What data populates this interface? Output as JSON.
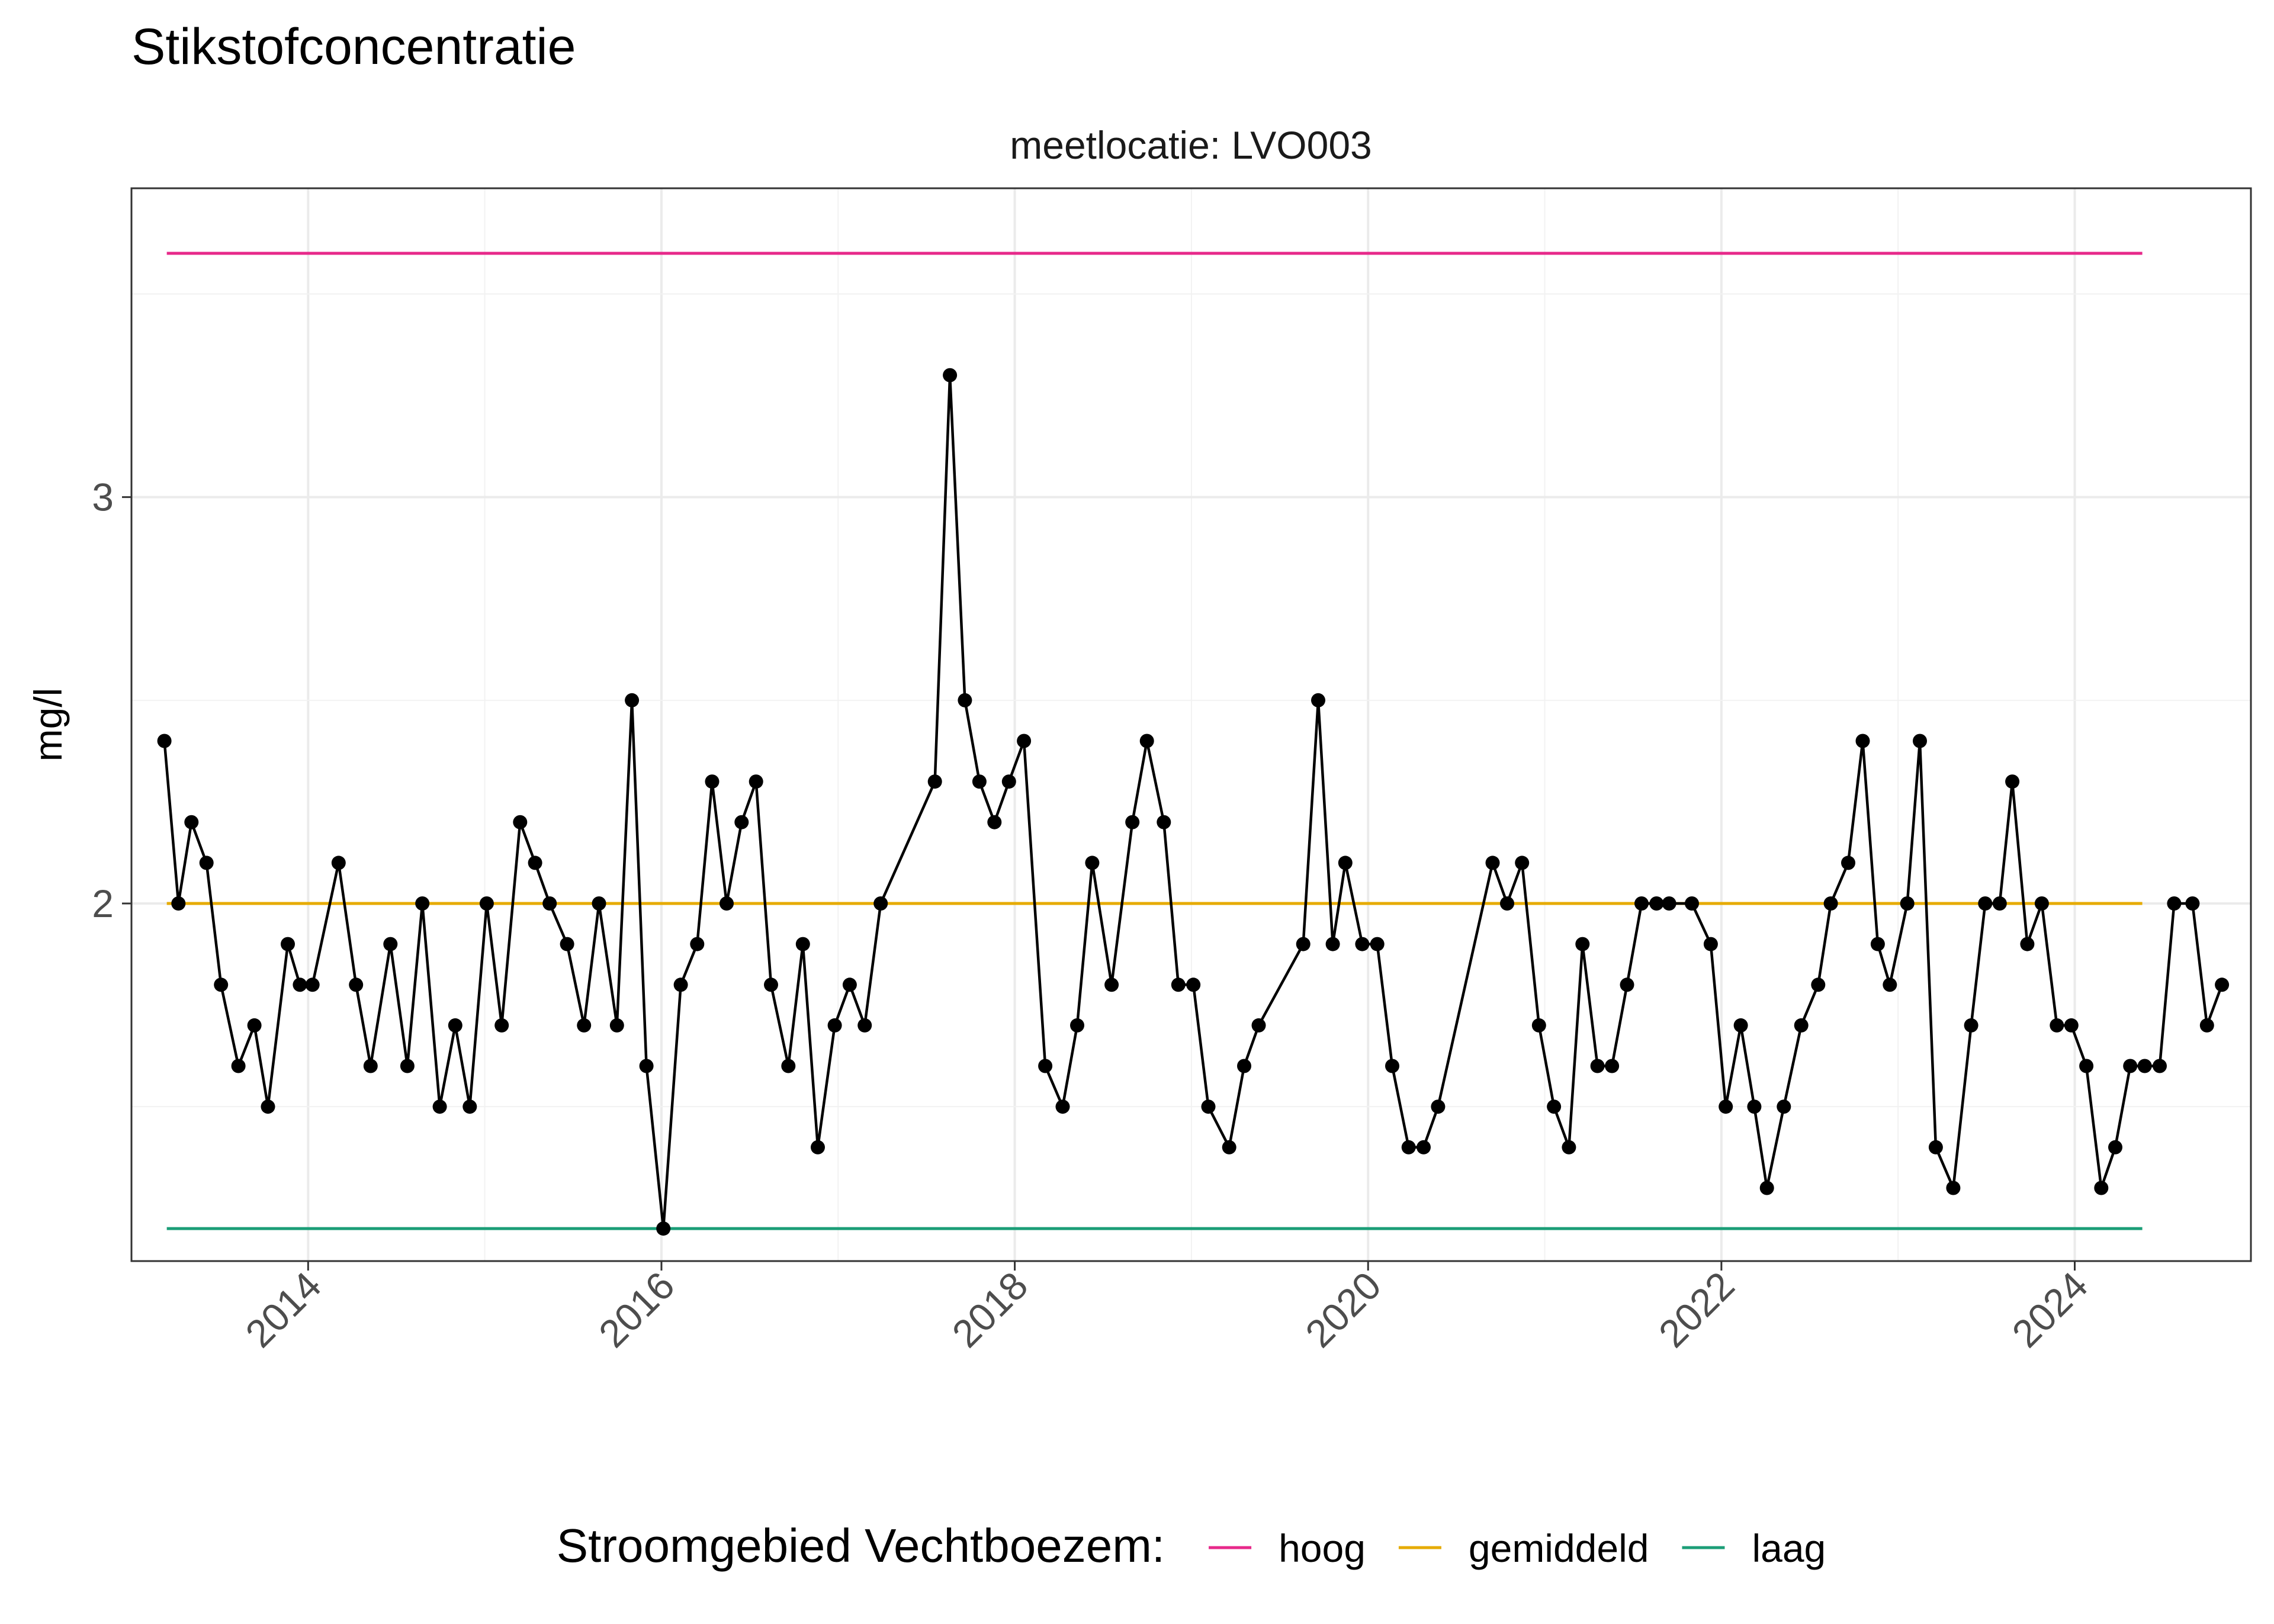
{
  "chart_data": {
    "type": "line",
    "title": "Stikstofconcentratie",
    "panel_title": "meetlocatie: LVO003",
    "xlabel": "",
    "ylabel": "mg/l",
    "xlim": [
      "2013-01-01",
      "2024-12-31"
    ],
    "ylim": [
      1.12,
      3.76
    ],
    "x_ticks": [
      "2014",
      "2016",
      "2018",
      "2020",
      "2022",
      "2024"
    ],
    "y_ticks": [
      "2",
      "3"
    ],
    "grid": true,
    "legend": {
      "title": "Stroomgebied Vechtboezem:",
      "position": "bottom",
      "entries": [
        {
          "name": "hoog",
          "color": "#e7298a"
        },
        {
          "name": "gemiddeld",
          "color": "#e6ab02"
        },
        {
          "name": "laag",
          "color": "#1b9e77"
        }
      ]
    },
    "reference_lines": [
      {
        "name": "hoog",
        "value": 3.6,
        "color": "#e7298a",
        "x_start": "2013-03-15",
        "x_end": "2024-05-20"
      },
      {
        "name": "gemiddeld",
        "value": 2.0,
        "color": "#e6ab02",
        "x_start": "2013-03-15",
        "x_end": "2024-05-20"
      },
      {
        "name": "laag",
        "value": 1.2,
        "color": "#1b9e77",
        "x_start": "2013-03-15",
        "x_end": "2024-05-20"
      }
    ],
    "series": [
      {
        "color": "#000000",
        "points": [
          [
            "2013-03-10",
            2.4
          ],
          [
            "2013-04-08",
            2.0
          ],
          [
            "2013-05-05",
            2.2
          ],
          [
            "2013-06-05",
            2.1
          ],
          [
            "2013-07-05",
            1.8
          ],
          [
            "2013-08-10",
            1.6
          ],
          [
            "2013-09-12",
            1.7
          ],
          [
            "2013-10-10",
            1.5
          ],
          [
            "2013-11-20",
            1.9
          ],
          [
            "2013-12-15",
            1.8
          ],
          [
            "2014-01-10",
            1.8
          ],
          [
            "2014-03-05",
            2.1
          ],
          [
            "2014-04-10",
            1.8
          ],
          [
            "2014-05-10",
            1.6
          ],
          [
            "2014-06-20",
            1.9
          ],
          [
            "2014-07-25",
            1.6
          ],
          [
            "2014-08-25",
            2.0
          ],
          [
            "2014-09-30",
            1.5
          ],
          [
            "2014-11-01",
            1.7
          ],
          [
            "2014-12-01",
            1.5
          ],
          [
            "2015-01-05",
            2.0
          ],
          [
            "2015-02-05",
            1.7
          ],
          [
            "2015-03-15",
            2.2
          ],
          [
            "2015-04-15",
            2.1
          ],
          [
            "2015-05-15",
            2.0
          ],
          [
            "2015-06-20",
            1.9
          ],
          [
            "2015-07-25",
            1.7
          ],
          [
            "2015-08-25",
            2.0
          ],
          [
            "2015-10-01",
            1.7
          ],
          [
            "2015-11-01",
            2.5
          ],
          [
            "2015-12-01",
            1.6
          ],
          [
            "2016-01-05",
            1.2
          ],
          [
            "2016-02-10",
            1.8
          ],
          [
            "2016-03-15",
            1.9
          ],
          [
            "2016-04-15",
            2.3
          ],
          [
            "2016-05-15",
            2.0
          ],
          [
            "2016-06-15",
            2.2
          ],
          [
            "2016-07-15",
            2.3
          ],
          [
            "2016-08-15",
            1.8
          ],
          [
            "2016-09-20",
            1.6
          ],
          [
            "2016-10-20",
            1.9
          ],
          [
            "2016-11-20",
            1.4
          ],
          [
            "2016-12-25",
            1.7
          ],
          [
            "2017-01-25",
            1.8
          ],
          [
            "2017-02-25",
            1.7
          ],
          [
            "2017-03-30",
            2.0
          ],
          [
            "2017-07-20",
            2.3
          ],
          [
            "2017-08-20",
            3.3
          ],
          [
            "2017-09-20",
            2.5
          ],
          [
            "2017-10-20",
            2.3
          ],
          [
            "2017-11-20",
            2.2
          ],
          [
            "2017-12-20",
            2.3
          ],
          [
            "2018-01-20",
            2.4
          ],
          [
            "2018-03-05",
            1.6
          ],
          [
            "2018-04-10",
            1.5
          ],
          [
            "2018-05-10",
            1.7
          ],
          [
            "2018-06-10",
            2.1
          ],
          [
            "2018-07-20",
            1.8
          ],
          [
            "2018-09-01",
            2.2
          ],
          [
            "2018-10-01",
            2.4
          ],
          [
            "2018-11-05",
            2.2
          ],
          [
            "2018-12-05",
            1.8
          ],
          [
            "2019-01-05",
            1.8
          ],
          [
            "2019-02-05",
            1.5
          ],
          [
            "2019-03-20",
            1.4
          ],
          [
            "2019-04-20",
            1.6
          ],
          [
            "2019-05-20",
            1.7
          ],
          [
            "2019-08-20",
            1.9
          ],
          [
            "2019-09-20",
            2.5
          ],
          [
            "2019-10-20",
            1.9
          ],
          [
            "2019-11-15",
            2.1
          ],
          [
            "2019-12-20",
            1.9
          ],
          [
            "2020-01-20",
            1.9
          ],
          [
            "2020-02-20",
            1.6
          ],
          [
            "2020-03-25",
            1.4
          ],
          [
            "2020-04-25",
            1.4
          ],
          [
            "2020-05-25",
            1.5
          ],
          [
            "2020-09-15",
            2.1
          ],
          [
            "2020-10-15",
            2.0
          ],
          [
            "2020-11-15",
            2.1
          ],
          [
            "2020-12-20",
            1.7
          ],
          [
            "2021-01-20",
            1.5
          ],
          [
            "2021-02-20",
            1.4
          ],
          [
            "2021-03-20",
            1.9
          ],
          [
            "2021-04-20",
            1.6
          ],
          [
            "2021-05-20",
            1.6
          ],
          [
            "2021-06-20",
            1.8
          ],
          [
            "2021-07-20",
            2.0
          ],
          [
            "2021-08-20",
            2.0
          ],
          [
            "2021-09-15",
            2.0
          ],
          [
            "2021-11-01",
            2.0
          ],
          [
            "2021-12-10",
            1.9
          ],
          [
            "2022-01-10",
            1.5
          ],
          [
            "2022-02-10",
            1.7
          ],
          [
            "2022-03-10",
            1.5
          ],
          [
            "2022-04-05",
            1.3
          ],
          [
            "2022-05-10",
            1.5
          ],
          [
            "2022-06-15",
            1.7
          ],
          [
            "2022-07-20",
            1.8
          ],
          [
            "2022-08-15",
            2.0
          ],
          [
            "2022-09-20",
            2.1
          ],
          [
            "2022-10-20",
            2.4
          ],
          [
            "2022-11-20",
            1.9
          ],
          [
            "2022-12-15",
            1.8
          ],
          [
            "2023-01-20",
            2.0
          ],
          [
            "2023-02-15",
            2.4
          ],
          [
            "2023-03-20",
            1.4
          ],
          [
            "2023-04-25",
            1.3
          ],
          [
            "2023-06-01",
            1.7
          ],
          [
            "2023-06-30",
            2.0
          ],
          [
            "2023-07-30",
            2.0
          ],
          [
            "2023-08-25",
            2.3
          ],
          [
            "2023-09-25",
            1.9
          ],
          [
            "2023-10-25",
            2.0
          ],
          [
            "2023-11-25",
            1.7
          ],
          [
            "2023-12-25",
            1.7
          ],
          [
            "2024-01-25",
            1.6
          ],
          [
            "2024-02-25",
            1.3
          ],
          [
            "2024-03-25",
            1.4
          ],
          [
            "2024-04-25",
            1.6
          ],
          [
            "2024-05-25",
            1.6
          ],
          [
            "2024-06-25",
            1.6
          ],
          [
            "2024-07-25",
            2.0
          ],
          [
            "2024-09-01",
            2.0
          ],
          [
            "2024-10-01",
            1.7
          ],
          [
            "2024-11-01",
            1.8
          ]
        ]
      }
    ]
  }
}
